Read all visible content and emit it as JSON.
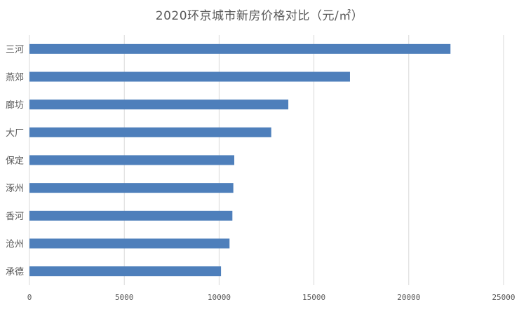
{
  "chart_data": {
    "type": "bar",
    "orientation": "horizontal",
    "title": "2020环京城市新房价格对比（元/㎡）",
    "categories": [
      "三河",
      "燕郊",
      "廊坊",
      "大厂",
      "保定",
      "涿州",
      "香河",
      "沧州",
      "承德"
    ],
    "series": [
      {
        "values": [
          22200,
          16900,
          13650,
          12750,
          10800,
          10750,
          10700,
          10550,
          10100
        ]
      }
    ],
    "xlim": [
      0,
      25000
    ],
    "xticks": [
      "0",
      "5000",
      "10000",
      "15000",
      "20000",
      "25000"
    ],
    "grid": "vertical",
    "bar_color": "#4e7fbb",
    "grid_color": "#d9d9d9",
    "text_color": "#595959"
  }
}
